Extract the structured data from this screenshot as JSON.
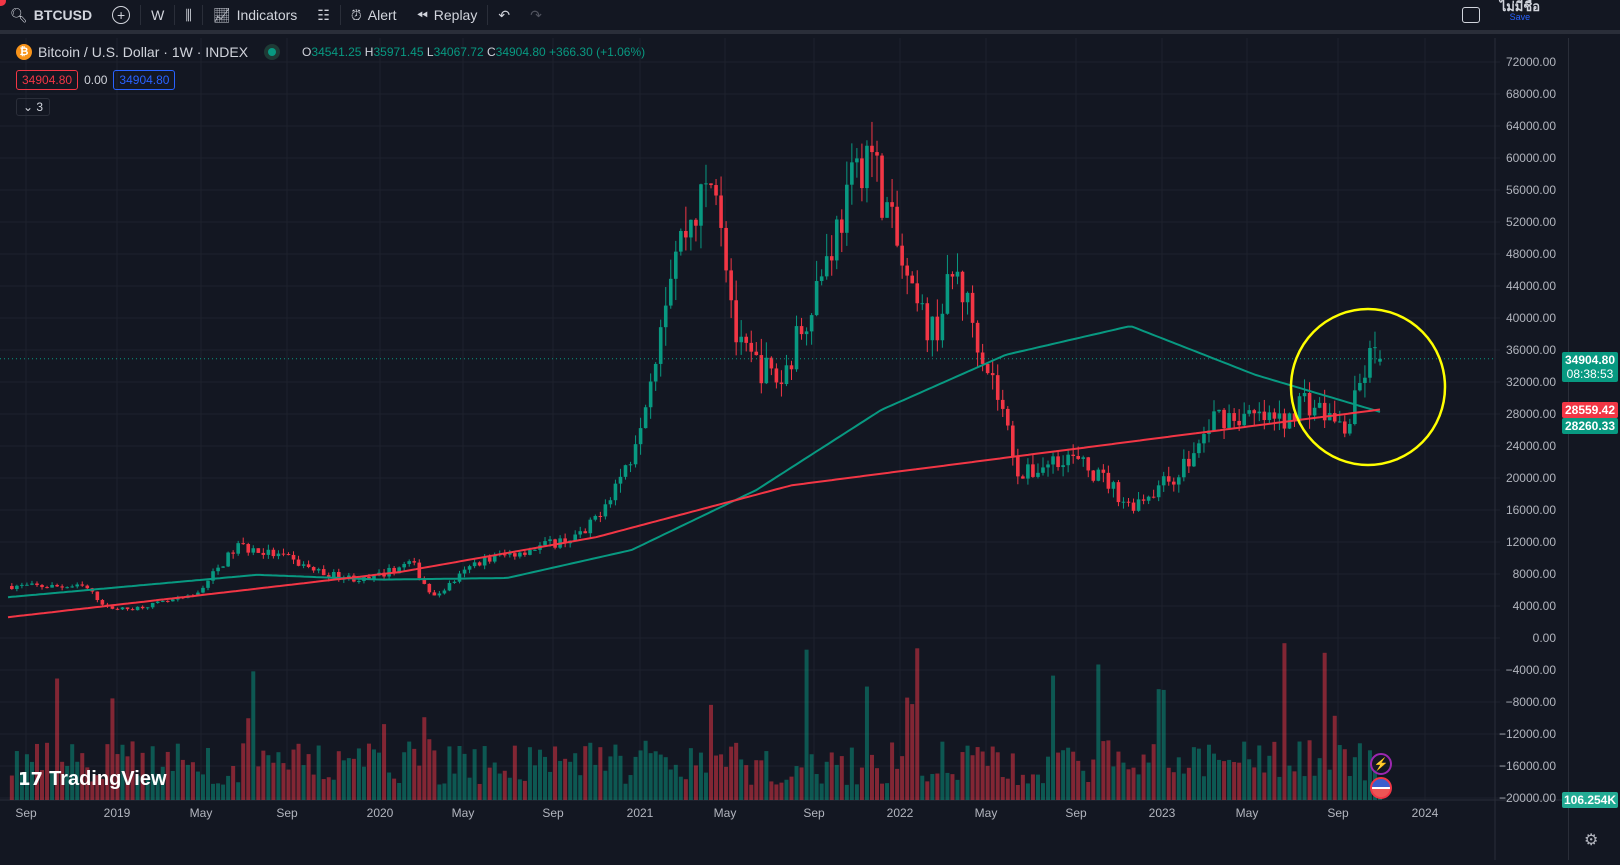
{
  "toolbar": {
    "symbol": "BTCUSD",
    "interval": "W",
    "indicators": "Indicators",
    "alert": "Alert",
    "replay": "Replay",
    "account_name": "ไม่มีชื่อ",
    "save": "Save"
  },
  "legend": {
    "title": "Bitcoin / U.S. Dollar · 1W · INDEX",
    "open_label": "O",
    "open": "34541.25",
    "high_label": "H",
    "high": "35971.45",
    "low_label": "L",
    "low": "34067.72",
    "close_label": "C",
    "close": "34904.80",
    "change": "+366.30 (+1.06%)",
    "bid": "34904.80",
    "spread": "0.00",
    "ask": "34904.80",
    "collapsed_count": "3"
  },
  "colors": {
    "up": "#089981",
    "down": "#f23645",
    "ma_fast": "#089981",
    "ma_slow": "#f23645",
    "highlight": "#ffff00"
  },
  "price_axis": [
    "72000.00",
    "68000.00",
    "64000.00",
    "60000.00",
    "56000.00",
    "52000.00",
    "48000.00",
    "44000.00",
    "40000.00",
    "36000.00",
    "32000.00",
    "28000.00",
    "24000.00",
    "20000.00",
    "16000.00",
    "12000.00",
    "8000.00",
    "4000.00",
    "0.00",
    "−4000.00",
    "−8000.00",
    "−12000.00",
    "−16000.00",
    "−20000.00"
  ],
  "time_axis": [
    "Sep",
    "2019",
    "May",
    "Sep",
    "2020",
    "May",
    "Sep",
    "2021",
    "May",
    "Sep",
    "2022",
    "May",
    "Sep",
    "2023",
    "May",
    "Sep",
    "2024"
  ],
  "tags": {
    "last_price": "34904.80",
    "countdown": "08:38:53",
    "ma_slow": "28559.42",
    "ma_fast": "28260.33",
    "volume": "106.254K"
  },
  "brand": "TradingView",
  "chart_data": {
    "type": "candlestick",
    "timeframe": "1W",
    "last_candle": {
      "open": 34541.25,
      "high": 35971.45,
      "low": 34067.72,
      "close": 34904.8
    },
    "price_path": [
      [
        "2018-08",
        6500
      ],
      [
        "2018-11",
        6400
      ],
      [
        "2018-12",
        3800
      ],
      [
        "2019-01",
        3600
      ],
      [
        "2019-04",
        5200
      ],
      [
        "2019-06",
        11500
      ],
      [
        "2019-08",
        10200
      ],
      [
        "2019-10",
        8000
      ],
      [
        "2019-12",
        7200
      ],
      [
        "2020-02",
        9500
      ],
      [
        "2020-03",
        5000
      ],
      [
        "2020-05",
        9500
      ],
      [
        "2020-08",
        11500
      ],
      [
        "2020-10",
        13000
      ],
      [
        "2020-12",
        22000
      ],
      [
        "2021-01",
        33000
      ],
      [
        "2021-02",
        48000
      ],
      [
        "2021-04",
        58000
      ],
      [
        "2021-05",
        36000
      ],
      [
        "2021-07",
        32000
      ],
      [
        "2021-09",
        47000
      ],
      [
        "2021-11",
        62000
      ],
      [
        "2022-01",
        42000
      ],
      [
        "2022-02",
        38000
      ],
      [
        "2022-03",
        46000
      ],
      [
        "2022-05",
        30000
      ],
      [
        "2022-06",
        20000
      ],
      [
        "2022-08",
        23000
      ],
      [
        "2022-10",
        19500
      ],
      [
        "2022-11",
        16500
      ],
      [
        "2023-01",
        20000
      ],
      [
        "2023-02",
        23000
      ],
      [
        "2023-03",
        28000
      ],
      [
        "2023-06",
        27000
      ],
      [
        "2023-07",
        30000
      ],
      [
        "2023-09",
        26000
      ],
      [
        "2023-10",
        34900
      ]
    ],
    "ma_fast_path": [
      [
        5100
      ],
      [
        6500
      ],
      [
        7900
      ],
      [
        7300
      ],
      [
        7500
      ],
      [
        11000
      ],
      [
        18500
      ],
      [
        28500
      ],
      [
        35400
      ],
      [
        39000
      ],
      [
        32900
      ],
      [
        28260
      ]
    ],
    "ma_slow_path": [
      [
        2600
      ],
      [
        5400
      ],
      [
        8250
      ],
      [
        12600
      ],
      [
        19100
      ],
      [
        22250
      ],
      [
        25400
      ],
      [
        28559
      ]
    ]
  }
}
